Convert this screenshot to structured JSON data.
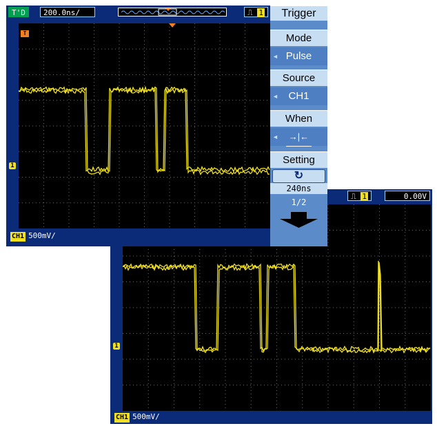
{
  "scope1": {
    "run_state": "T'D",
    "timebase": "200.0ns/",
    "channel_scale": "500mV/",
    "channel_label": "CH1",
    "trigger_menu": {
      "title": "Trigger",
      "items": [
        {
          "label": "Mode",
          "value": "Pulse"
        },
        {
          "label": "Source",
          "value": "CH1"
        },
        {
          "label": "When",
          "value": "→|←"
        }
      ],
      "setting_label": "Setting",
      "setting_value": "240ns",
      "page": "1/2"
    }
  },
  "scope2": {
    "trigger_level": "0.00V",
    "channel_scale": "500mV/",
    "channel_label": "CH1"
  },
  "colors": {
    "trace": "#f0e020",
    "frame": "#0b2a78",
    "menu_bg": "#5b8bc9",
    "menu_label": "#c7ddf2"
  },
  "icons": [
    "pulse-trigger-icon",
    "channel-1-marker",
    "trigger-position-marker",
    "rotate-knob-icon",
    "down-arrow-icon",
    "pulse-width-icon"
  ]
}
